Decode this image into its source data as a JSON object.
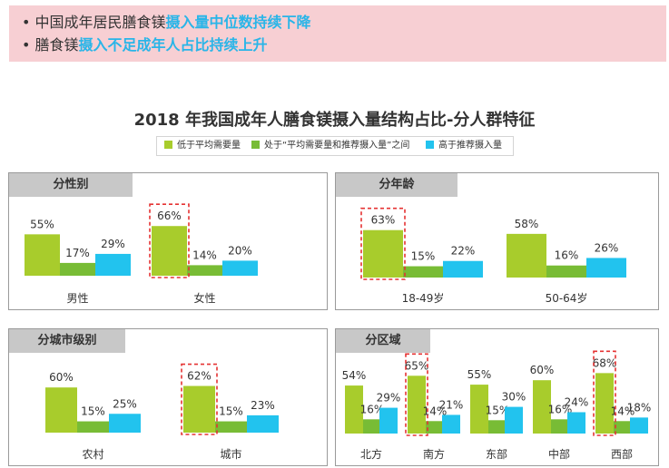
{
  "bullets": [
    {
      "prefix": "中国成年居民膳食镁",
      "highlight": "摄入量中位数持续下降"
    },
    {
      "prefix": "膳食镁",
      "highlight": "摄入不足成年人占比持续上升"
    }
  ],
  "colors": {
    "banner": "#f7cfd3",
    "highlight": "#29b5e8",
    "low": "#a8cc2c",
    "mid": "#78bc35",
    "high": "#22c3ee",
    "dash": "#e53232",
    "tab": "#c8c8c8"
  },
  "chart_data": [
    {
      "type": "bar",
      "title": "2018 年我国成年人膳食镁摄入量结构占比-分人群特征",
      "subtitle": "分性别",
      "categories": [
        "男性",
        "女性"
      ],
      "series": [
        {
          "name": "低于平均需要量",
          "values": [
            55,
            66
          ],
          "labels": [
            "55%",
            "66%"
          ]
        },
        {
          "name": "处于“平均需要量和推荐摄入量”之间",
          "values": [
            17,
            14
          ],
          "labels": [
            "17%",
            "14%"
          ]
        },
        {
          "name": "高于推荐摄入量",
          "values": [
            29,
            20
          ],
          "labels": [
            "29%",
            "20%"
          ]
        }
      ],
      "highlighted": [
        "女性"
      ],
      "legend": "top"
    },
    {
      "type": "bar",
      "subtitle": "分年龄",
      "categories": [
        "18-49岁",
        "50-64岁"
      ],
      "series": [
        {
          "name": "低于平均需要量",
          "values": [
            63,
            58
          ],
          "labels": [
            "63%",
            "58%"
          ]
        },
        {
          "name": "处于“平均需要量和推荐摄入量”之间",
          "values": [
            15,
            16
          ],
          "labels": [
            "15%",
            "16%"
          ]
        },
        {
          "name": "高于推荐摄入量",
          "values": [
            22,
            26
          ],
          "labels": [
            "22%",
            "26%"
          ]
        }
      ],
      "highlighted": [
        "18-49岁"
      ]
    },
    {
      "type": "bar",
      "subtitle": "分城市级别",
      "categories": [
        "农村",
        "城市"
      ],
      "series": [
        {
          "name": "低于平均需要量",
          "values": [
            60,
            62
          ],
          "labels": [
            "60%",
            "62%"
          ]
        },
        {
          "name": "处于“平均需要量和推荐摄入量”之间",
          "values": [
            15,
            15
          ],
          "labels": [
            "15%",
            "15%"
          ]
        },
        {
          "name": "高于推荐摄入量",
          "values": [
            25,
            23
          ],
          "labels": [
            "25%",
            "23%"
          ]
        }
      ],
      "highlighted": [
        "城市"
      ]
    },
    {
      "type": "bar",
      "subtitle": "分区域",
      "categories": [
        "北方",
        "南方",
        "东部",
        "中部",
        "西部"
      ],
      "series": [
        {
          "name": "低于平均需要量",
          "values": [
            54,
            65,
            55,
            60,
            68
          ],
          "labels": [
            "54%",
            "65%",
            "55%",
            "60%",
            "68%"
          ]
        },
        {
          "name": "处于“平均需要量和推荐摄入量”之间",
          "values": [
            16,
            14,
            15,
            16,
            14
          ],
          "labels": [
            "16%",
            "14%",
            "15%",
            "16%",
            "14%"
          ]
        },
        {
          "name": "高于推荐摄入量",
          "values": [
            29,
            21,
            30,
            24,
            18
          ],
          "labels": [
            "29%",
            "21%",
            "30%",
            "24%",
            "18%"
          ]
        }
      ],
      "highlighted": [
        "南方",
        "西部"
      ]
    }
  ]
}
